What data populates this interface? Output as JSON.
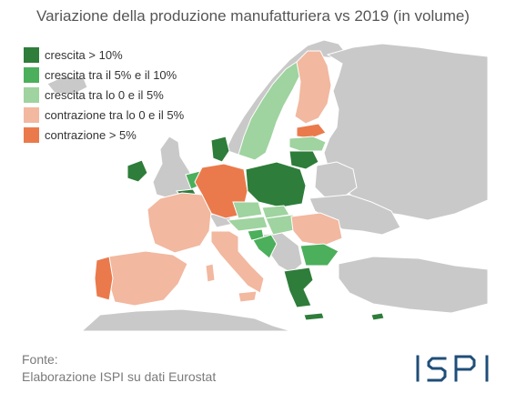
{
  "title": "Variazione della produzione manufatturiera vs 2019 (in volume)",
  "colors": {
    "sea": "#ffffff",
    "land_no_data": "#c9c9c9",
    "border": "#ffffff",
    "crescita_gt_10": "#2e7d3a",
    "crescita_5_10": "#4caf5b",
    "crescita_0_5": "#9fd39f",
    "contrazione_0_5": "#f2b8a0",
    "contrazione_gt_5": "#ea7a4c",
    "logo": "#1f4e79"
  },
  "legend": [
    {
      "label": "crescita > 10%",
      "color": "#2e7d3a"
    },
    {
      "label": "crescita tra il 5% e il 10%",
      "color": "#4caf5b"
    },
    {
      "label": "crescita tra lo 0 e il 5%",
      "color": "#9fd39f"
    },
    {
      "label": "contrazione tra lo 0 e il 5%",
      "color": "#f2b8a0"
    },
    {
      "label": "contrazione > 5%",
      "color": "#ea7a4c"
    }
  ],
  "source": {
    "line1": "Fonte:",
    "line2": "Elaborazione ISPI su dati Eurostat"
  },
  "logo_text": "ISPI"
}
